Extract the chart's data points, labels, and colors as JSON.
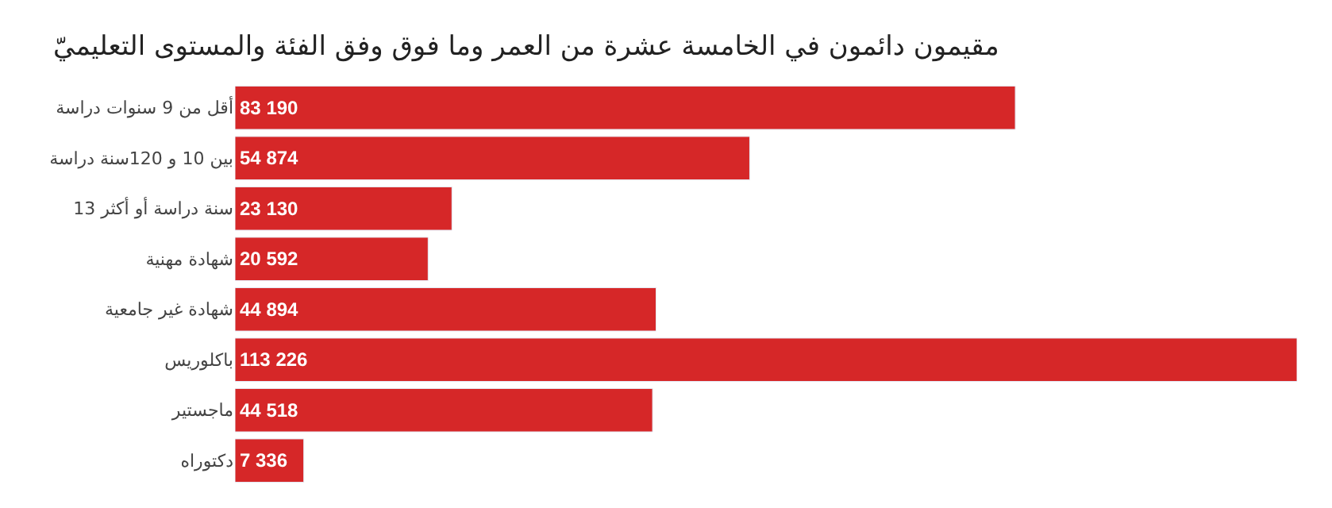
{
  "chart_data": {
    "type": "bar",
    "orientation": "horizontal",
    "title": "مقيمون دائمون في الخامسة عشرة من العمر وما فوق وفق الفئة والمستوى التعليميّ",
    "categories": [
      "أقل من 9 سنوات دراسة",
      "بين 10 و 120سنة دراسة",
      "سنة دراسة أو أكثر 13",
      "شهادة مهنية",
      "شهادة غير جامعية",
      "باكلوريس",
      "ماجستير",
      "دكتوراه"
    ],
    "values": [
      83190,
      54874,
      23130,
      20592,
      44894,
      113226,
      44518,
      7336
    ],
    "value_labels": [
      "83 190",
      "54 874",
      "23 130",
      "20 592",
      "44 894",
      "113 226",
      "44 518",
      "7 336"
    ],
    "color": "#d62728",
    "tick_labels": "y"
  }
}
